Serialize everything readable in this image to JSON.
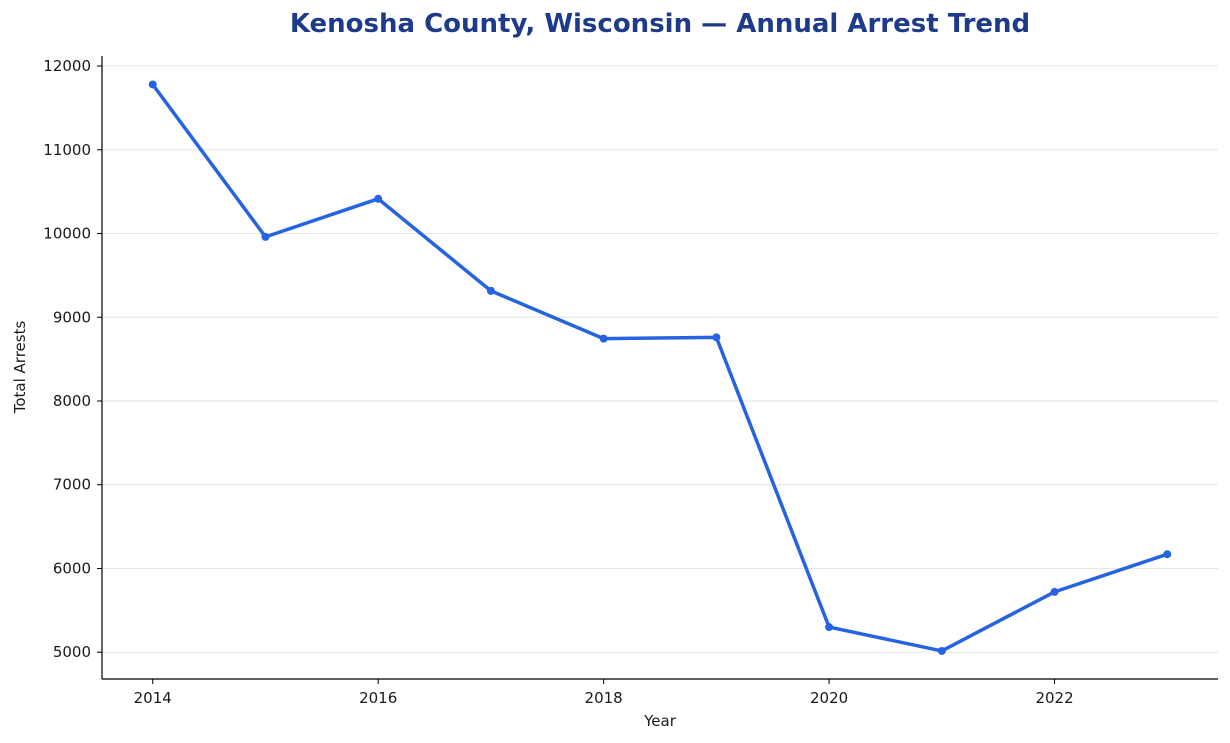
{
  "chart_data": {
    "type": "line",
    "title": "Kenosha County, Wisconsin — Annual Arrest Trend",
    "xlabel": "Year",
    "ylabel": "Total Arrests",
    "x": [
      2014,
      2015,
      2016,
      2017,
      2018,
      2019,
      2020,
      2021,
      2022,
      2023
    ],
    "series": [
      {
        "values": [
          11780,
          9960,
          10415,
          9315,
          8745,
          8760,
          5300,
          5015,
          5720,
          6170
        ]
      }
    ],
    "xticks": [
      "2014",
      "2016",
      "2018",
      "2020",
      "2022"
    ],
    "yticks": [
      "5000",
      "6000",
      "7000",
      "8000",
      "9000",
      "10000",
      "11000",
      "12000"
    ],
    "xlim": [
      2013.55,
      2023.45
    ],
    "ylim": [
      4680,
      12120
    ],
    "grid": "horizontal",
    "legend": "none",
    "colors": {
      "line": "#2563e0",
      "title": "#1e3a8a",
      "grid": "#e6e6e6",
      "axis": "#000000"
    }
  }
}
